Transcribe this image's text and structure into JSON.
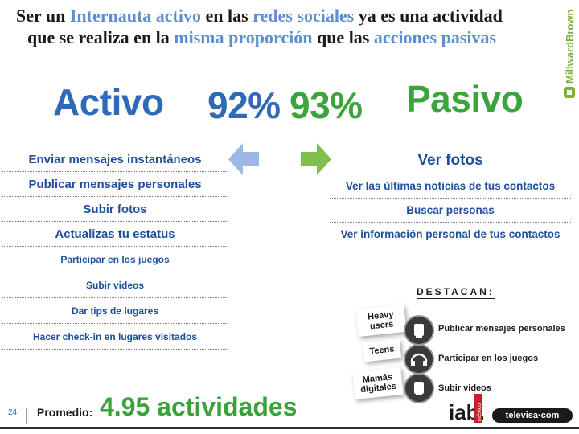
{
  "title": {
    "l1_a": "Ser un ",
    "l1_hl1": "Internauta activo",
    "l1_b": " en las ",
    "l1_hl2": "redes sociales",
    "l1_c": " ya es una actividad",
    "l2_a": "que se realiza en la ",
    "l2_hl1": "misma proporción",
    "l2_b": " que las ",
    "l2_hl2": "acciones pasivas"
  },
  "logo_text": "MillwardBrown",
  "headline": {
    "left_label": "Activo",
    "left_percent": "92%",
    "right_percent": "93%",
    "right_label": "Pasivo"
  },
  "colors": {
    "blue": "#2f6ab8",
    "green": "#3da33d",
    "highlight": "#5b8fcf"
  },
  "active_list": [
    "Enviar mensajes instantáneos",
    "Publicar mensajes personales",
    "Subir fotos",
    "Actualizas tu estatus",
    "Participar en los juegos",
    "Subir videos",
    "Dar tips de lugares",
    "Hacer check-in en lugares visitados"
  ],
  "passive_list": [
    "Ver fotos",
    "Ver las últimas noticias de tus contactos",
    "Buscar personas",
    "Ver información personal de tus contactos"
  ],
  "highlights": {
    "heading": "DESTACAN:",
    "items": [
      {
        "segment": "Heavy users",
        "activity": "Publicar mensajes personales",
        "icon": "hand-icon"
      },
      {
        "segment": "Teens",
        "activity": "Participar en los juegos",
        "icon": "headphones-icon"
      },
      {
        "segment": "Mamás digitales",
        "activity": "Subir videos",
        "icon": "hand-icon"
      }
    ]
  },
  "footer": {
    "page_number": "24",
    "average_label": "Promedio:",
    "average_value": "4.95 actividades",
    "iab_logo": "iab.",
    "iab_sub": "méxico",
    "televisa_logo": "televisa·com"
  }
}
